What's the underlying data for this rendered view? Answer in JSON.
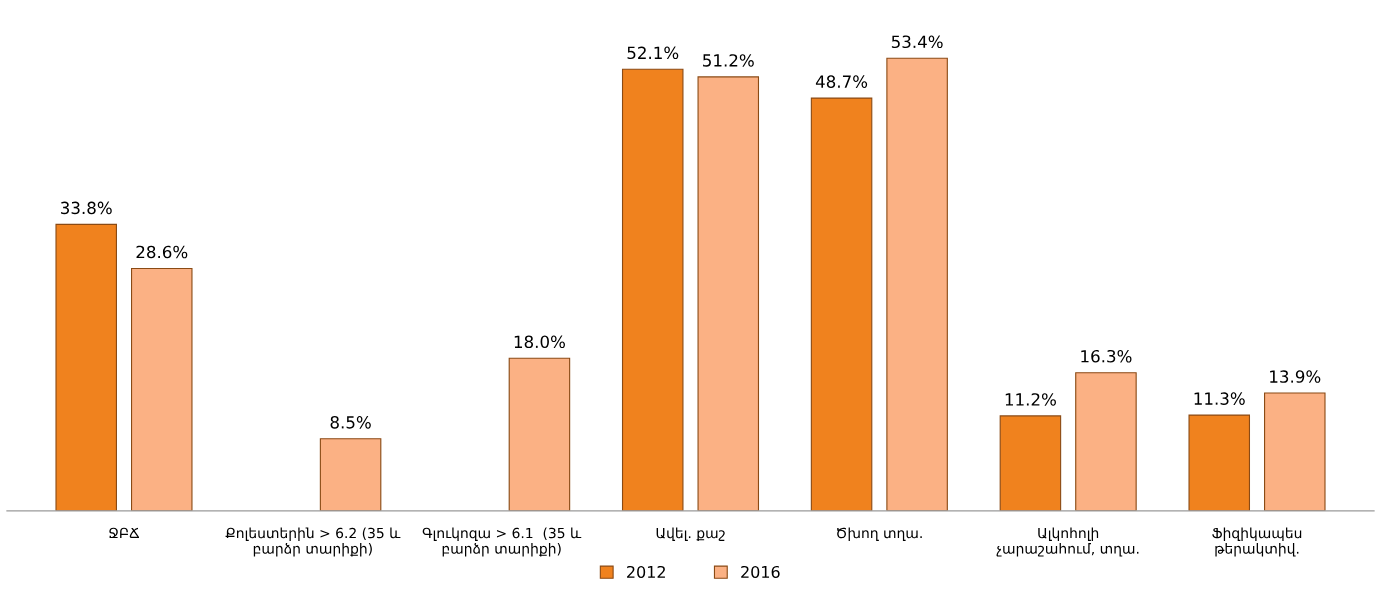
{
  "chart_data": {
    "type": "bar",
    "categories": [
      "ՋԲՃ",
      "Քոլեստերին > 6.2 (35 և\nբարձր տարիքի)",
      "Գլուկոզա > 6.1  (35 և\nբարձր տարիքի)",
      "Ավել. քաշ",
      "Ծխող տղա.",
      "Ալկոհոլի\nչարաշահում, տղա.",
      "Ֆիզիկապես\nթերակտիվ."
    ],
    "series": [
      {
        "name": "2012",
        "color": "#f0821e",
        "values": [
          33.8,
          null,
          null,
          52.1,
          48.7,
          11.2,
          11.3
        ],
        "value_labels": [
          "33.8%",
          null,
          null,
          "52.1%",
          "48.7%",
          "11.2%",
          "11.3%"
        ]
      },
      {
        "name": "2016",
        "color": "#fbb184",
        "values": [
          28.6,
          8.5,
          18.0,
          51.2,
          53.4,
          16.3,
          13.9
        ],
        "value_labels": [
          "28.6%",
          "8.5%",
          "18.0%",
          "51.2%",
          "53.4%",
          "16.3%",
          "13.9%"
        ]
      }
    ],
    "legend": "bottom",
    "grid": false
  }
}
